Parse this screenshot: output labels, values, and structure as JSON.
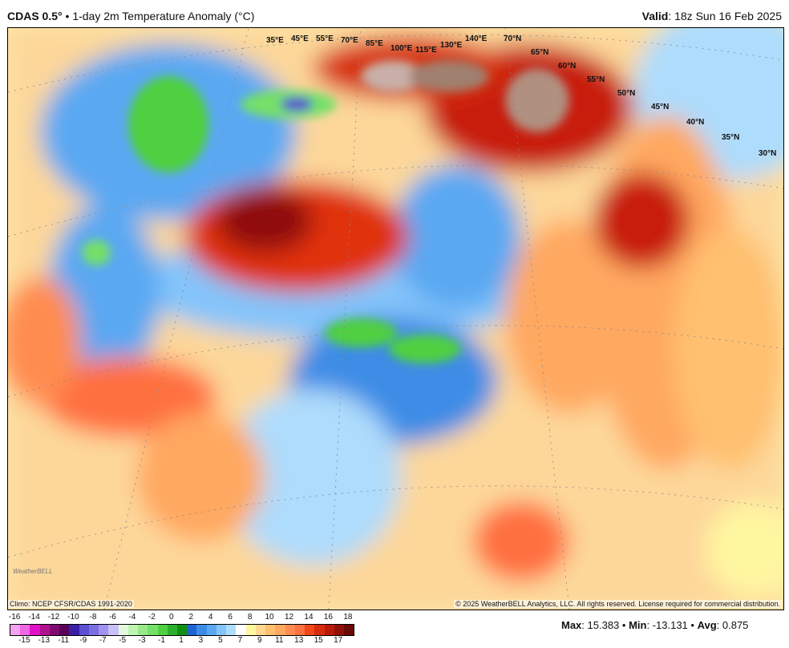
{
  "header": {
    "model": "CDAS 0.5°",
    "separator": "•",
    "product": "1-day 2m Temperature Anomaly (°C)",
    "valid_label": "Valid",
    "valid_time": ": 18z Sun 16 Feb 2025"
  },
  "map": {
    "lon_labels": [
      "35°E",
      "45°E",
      "55°E",
      "70°E",
      "85°E",
      "100°E",
      "115°E",
      "130°E",
      "140°E"
    ],
    "lat_labels": [
      "70°N",
      "65°N",
      "60°N",
      "55°N",
      "50°N",
      "45°N",
      "40°N",
      "35°N",
      "30°N"
    ],
    "climo": "Climo: NCEP CFSR/CDAS 1991-2020",
    "copyright": "© 2025 WeatherBELL Analytics, LLC. All rights reserved. License required for commercial distribution.",
    "logo_text": "WeatherBELL"
  },
  "colorbar": {
    "ticks": [
      "-16",
      "-15",
      "-14",
      "-13",
      "-12",
      "-11",
      "-10",
      "-9",
      "-8",
      "-7",
      "-6",
      "-5",
      "-4",
      "-3",
      "-2",
      "-1",
      "0",
      "1",
      "2",
      "3",
      "4",
      "5",
      "6",
      "7",
      "8",
      "9",
      "10",
      "11",
      "12",
      "13",
      "14",
      "15",
      "16",
      "17",
      "18"
    ],
    "colors": [
      "#f5a3f0",
      "#f066e6",
      "#e012c8",
      "#b0128e",
      "#800a70",
      "#5a0058",
      "#3a20a8",
      "#5a50d0",
      "#7a6ee0",
      "#a092f0",
      "#c8c0f8",
      "#e4f8dc",
      "#bff5b0",
      "#98ea88",
      "#74e068",
      "#50d040",
      "#2cb02c",
      "#109010",
      "#1e64d0",
      "#3c8ce6",
      "#5aa8f2",
      "#84c4fa",
      "#aedcfc",
      "#ffffff",
      "#fff6a0",
      "#ffd890",
      "#ffc070",
      "#ffa860",
      "#ff8c50",
      "#ff7040",
      "#f04818",
      "#d82a0c",
      "#b81a08",
      "#901008",
      "#6a0a08"
    ]
  },
  "stats": {
    "max_label": "Max",
    "max_value": ": 15.383 •",
    "min_label": "Min",
    "min_value": ": -13.131 •",
    "avg_label": "Avg",
    "avg_value": ": 0.875"
  }
}
